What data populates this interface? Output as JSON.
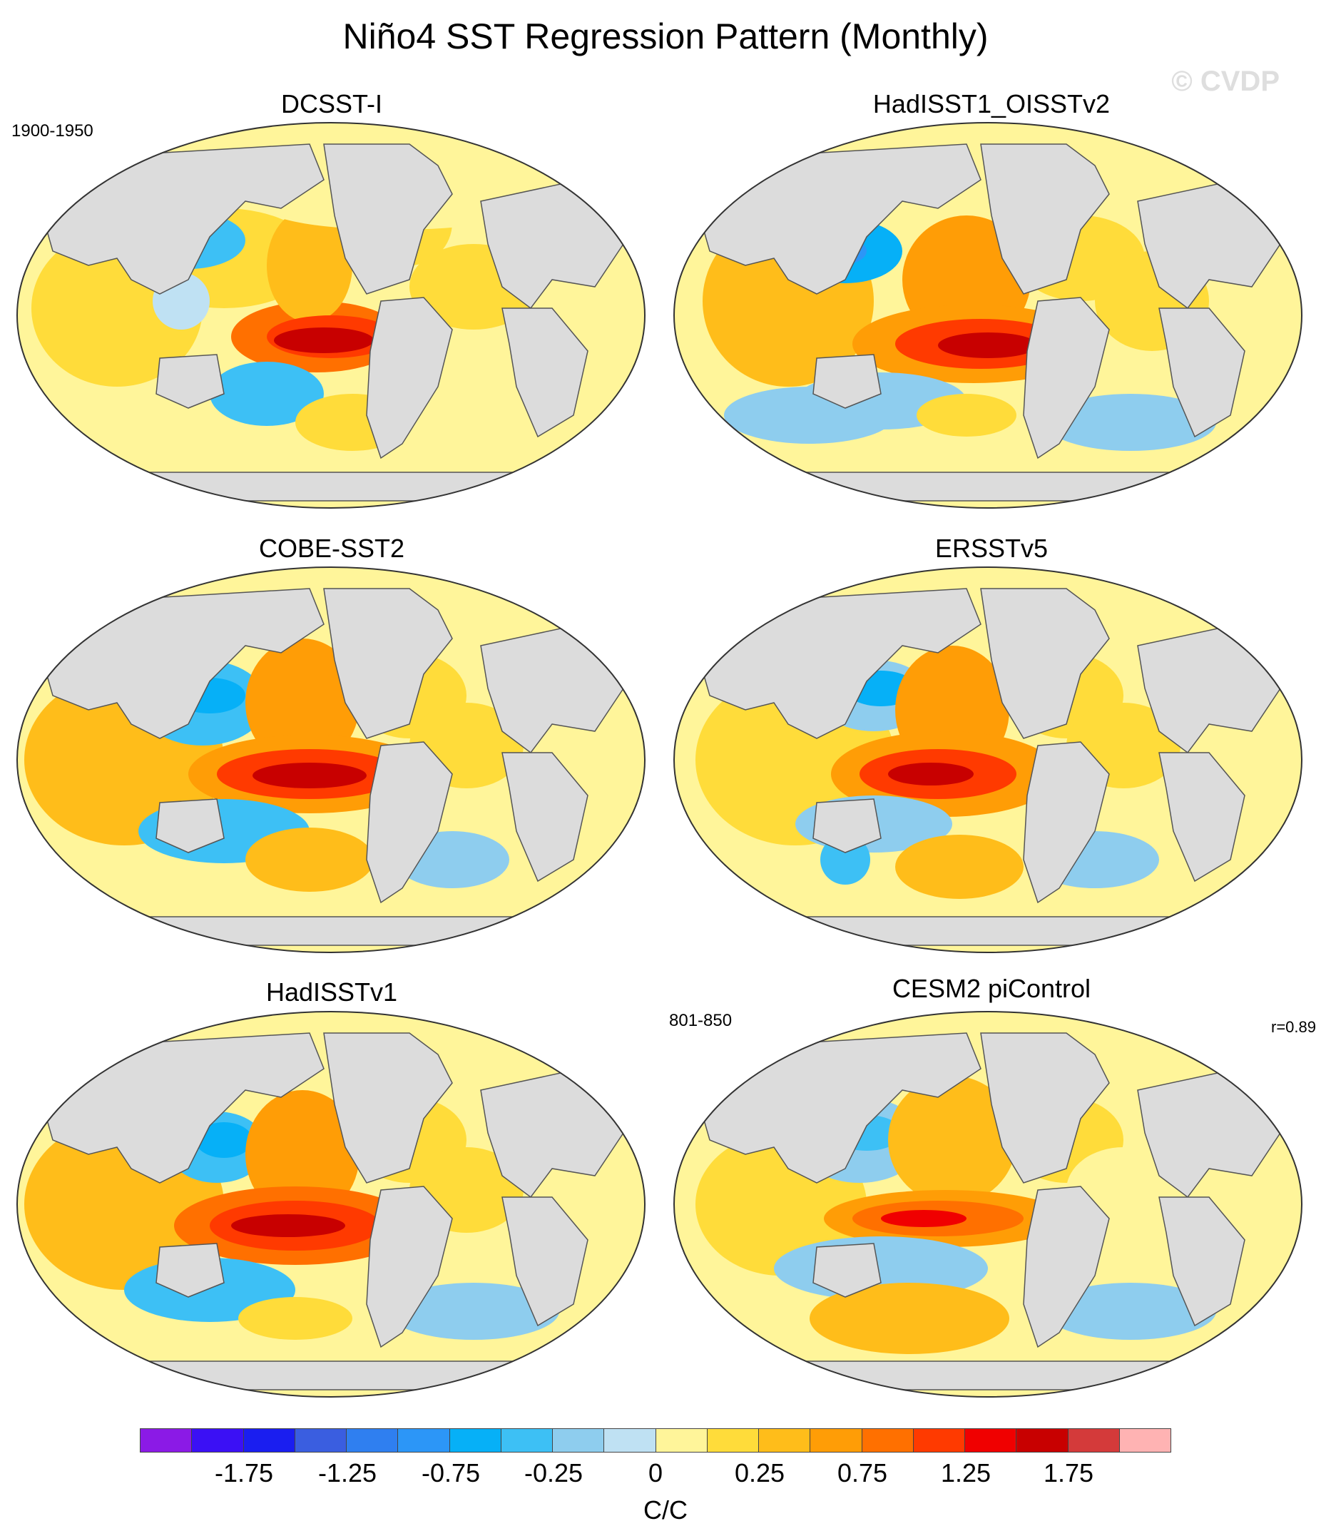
{
  "title": "Niño4 SST Regression Pattern (Monthly)",
  "watermark": "© CVDP",
  "colors": {
    "land": "#dcdcdc",
    "coast": "#555555",
    "scale": [
      "#8b1ae6",
      "#3b10f5",
      "#1a1ef0",
      "#3a5ee0",
      "#2f7ff0",
      "#2c96f7",
      "#06b0f7",
      "#3dc0f5",
      "#8ecdee",
      "#bfe1f3",
      "#fff59a",
      "#ffdc3a",
      "#ffbd1a",
      "#ff9d06",
      "#ff7000",
      "#ff3a00",
      "#f00000",
      "#c80000",
      "#d43a3a",
      "#ffb3b3"
    ]
  },
  "panels": [
    {
      "title": "DCSST-I",
      "left_note": "1900-1950",
      "right_note": "",
      "pattern": "dcsst"
    },
    {
      "title": "HadISST1_OISSTv2",
      "left_note": "",
      "right_note": "",
      "pattern": "hadoi"
    },
    {
      "title": "COBE-SST2",
      "left_note": "",
      "right_note": "",
      "pattern": "cobe"
    },
    {
      "title": "ERSSTv5",
      "left_note": "",
      "right_note": "",
      "pattern": "ersst"
    },
    {
      "title": "HadISSTv1",
      "left_note": "",
      "right_note": "",
      "pattern": "hadv1"
    },
    {
      "title": "CESM2 piControl",
      "left_note": "801-850",
      "right_note": "r=0.89",
      "pattern": "cesm"
    }
  ],
  "colorbar": {
    "labels": [
      "-1.75",
      "-1.25",
      "-0.75",
      "-0.25",
      "0",
      "0.25",
      "0.75",
      "1.25",
      "1.75"
    ],
    "unit": "C/C"
  }
}
